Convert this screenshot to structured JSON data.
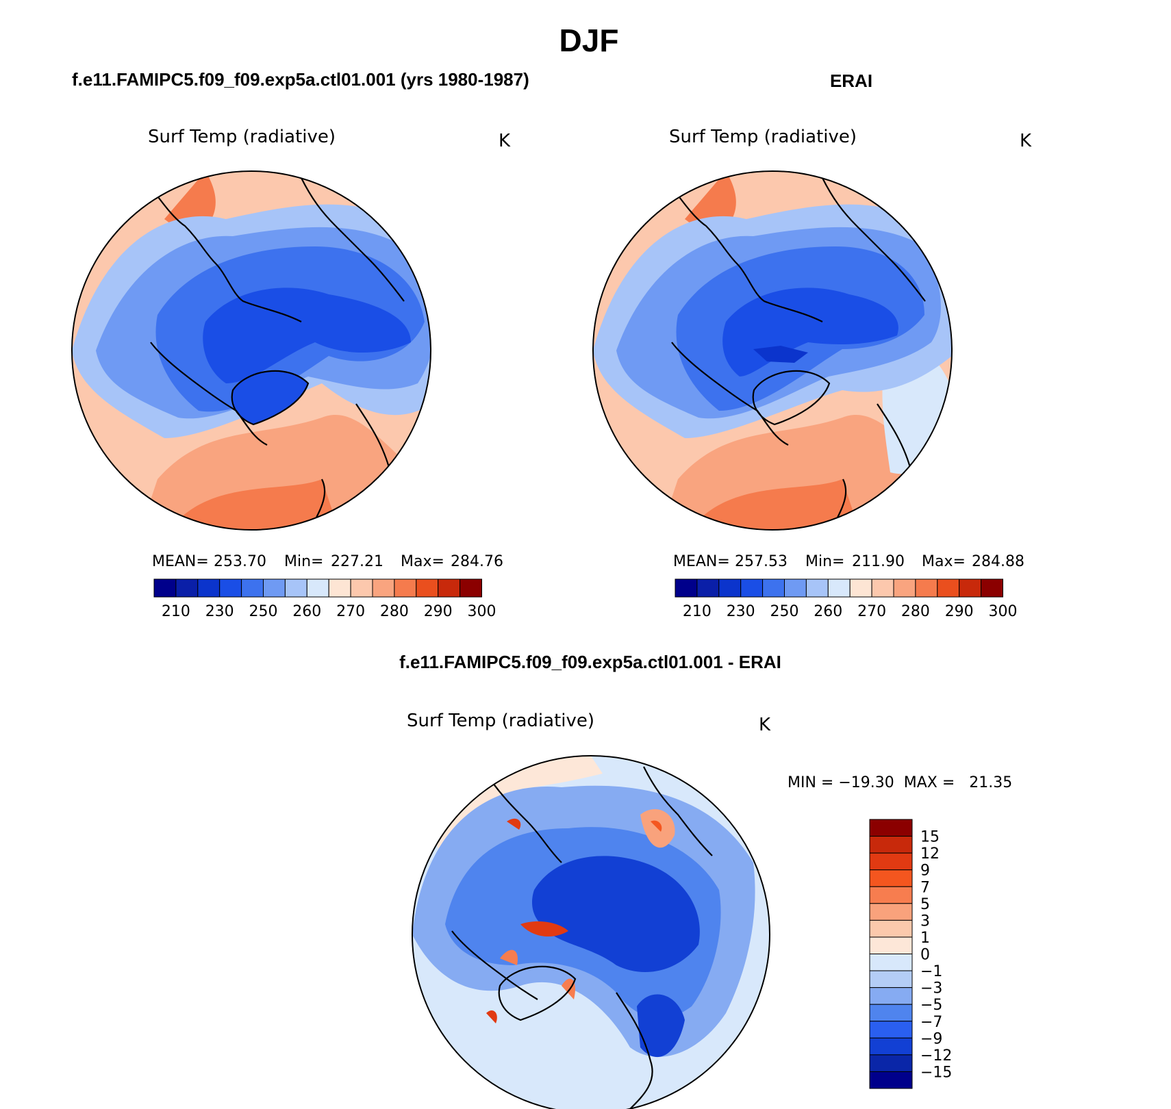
{
  "figure": {
    "season": "DJF",
    "top_left_title": "f.e11.FAMIPC5.f09_f09.exp5a.ctl01.001 (yrs 1980-1987)",
    "top_right_title": "ERAI",
    "bottom_title": "f.e11.FAMIPC5.f09_f09.exp5a.ctl01.001 - ERAI"
  },
  "panels": {
    "model": {
      "field_label": "Surf Temp (radiative)",
      "units": "K",
      "mean_label": "MEAN=",
      "mean": "253.70",
      "min_label": "Min=",
      "min": "227.21",
      "max_label": "Max=",
      "max": "284.76",
      "colorbar_ticks": [
        "210",
        "230",
        "250",
        "260",
        "270",
        "280",
        "290",
        "300"
      ]
    },
    "erai": {
      "field_label": "Surf Temp (radiative)",
      "units": "K",
      "mean_label": "MEAN=",
      "mean": "257.53",
      "min_label": "Min=",
      "min": "211.90",
      "max_label": "Max=",
      "max": "284.88",
      "colorbar_ticks": [
        "210",
        "230",
        "250",
        "260",
        "270",
        "280",
        "290",
        "300"
      ]
    },
    "diff": {
      "field_label": "Surf Temp (radiative)",
      "units": "K",
      "minmax_text": "MIN = −19.30  MAX =   21.35",
      "colorbar_ticks": [
        "15",
        "12",
        "9",
        "7",
        "5",
        "3",
        "1",
        "0",
        "−1",
        "−3",
        "−5",
        "−7",
        "−9",
        "−12",
        "−15"
      ]
    }
  },
  "colors": {
    "abs_scale": [
      "#00008b",
      "#0a1fa8",
      "#0b34cc",
      "#1a4ee6",
      "#3d72ee",
      "#6f9af3",
      "#a7c4f8",
      "#d8e8fb",
      "#fde5d4",
      "#fcc8ad",
      "#f9a47f",
      "#f57b4d",
      "#ea4f1e",
      "#c8290b",
      "#8b0000"
    ],
    "diff_scale": [
      "#8b0000",
      "#c8290b",
      "#e13a12",
      "#f4561f",
      "#f77d4f",
      "#f9a27c",
      "#fbc9ac",
      "#fde7d8",
      "#d8e8fb",
      "#b4cdf6",
      "#86abf2",
      "#4f84ee",
      "#2a5ff0",
      "#1240d4",
      "#0a26a8",
      "#00008b"
    ],
    "ocean_warm": "#f9a47f",
    "coast": "#000000"
  }
}
